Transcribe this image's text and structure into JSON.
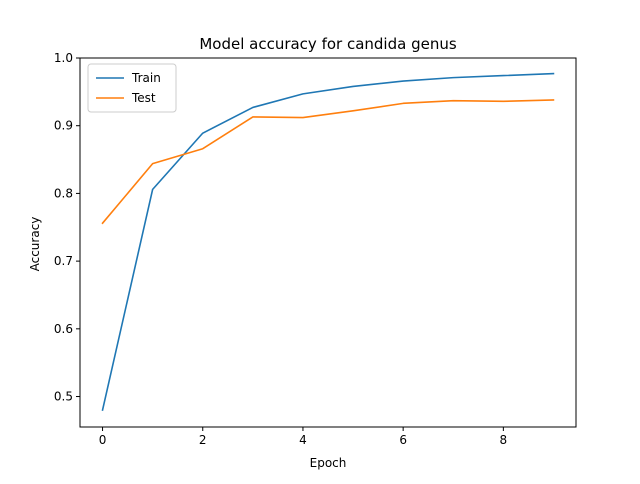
{
  "chart_data": {
    "type": "line",
    "title": "Model accuracy for candida genus",
    "xlabel": "Epoch",
    "ylabel": "Accuracy",
    "x": [
      0,
      1,
      2,
      3,
      4,
      5,
      6,
      7,
      8,
      9
    ],
    "series": [
      {
        "name": "Train",
        "color": "#1f77b4",
        "values": [
          0.48,
          0.806,
          0.889,
          0.927,
          0.947,
          0.958,
          0.966,
          0.971,
          0.974,
          0.977
        ]
      },
      {
        "name": "Test",
        "color": "#ff7f0e",
        "values": [
          0.756,
          0.844,
          0.866,
          0.913,
          0.912,
          0.922,
          0.933,
          0.937,
          0.936,
          0.938
        ]
      }
    ],
    "xlim": [
      -0.45,
      9.45
    ],
    "ylim": [
      0.455,
      1.0
    ],
    "xticks": [
      0,
      2,
      4,
      6,
      8
    ],
    "xtick_labels": [
      "0",
      "2",
      "4",
      "6",
      "8"
    ],
    "yticks": [
      0.5,
      0.6,
      0.7,
      0.8,
      0.9,
      1.0
    ],
    "ytick_labels": [
      "0.5",
      "0.6",
      "0.7",
      "0.8",
      "0.9",
      "1.0"
    ],
    "grid": false,
    "legend_position": "top-left"
  }
}
